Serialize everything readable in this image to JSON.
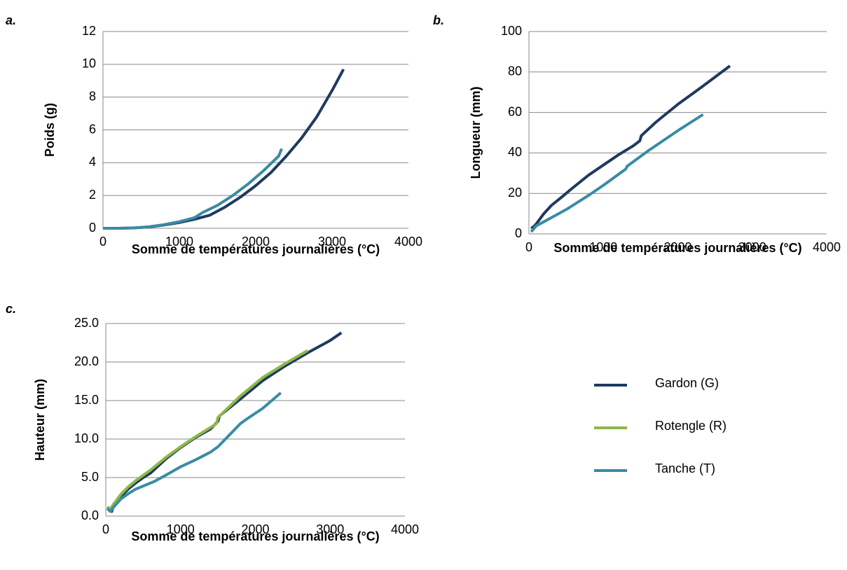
{
  "chart_data": [
    {
      "type": "line",
      "label": "a.",
      "ylabel": "Poids (g)",
      "xlabel": "Somme de températures journalières (°C)",
      "xlim": [
        0,
        4000
      ],
      "xticks": [
        0,
        1000,
        2000,
        3000,
        4000
      ],
      "ylim": [
        0,
        12
      ],
      "yticks": [
        0,
        2,
        4,
        6,
        8,
        10,
        12
      ],
      "grid": true,
      "series": [
        {
          "color": "#1f3a5f",
          "x": [
            0,
            200,
            400,
            600,
            800,
            1000,
            1200,
            1400,
            1600,
            1800,
            2000,
            2200,
            2400,
            2600,
            2800,
            3000,
            3150
          ],
          "values": [
            0,
            0,
            0.02,
            0.08,
            0.2,
            0.35,
            0.55,
            0.8,
            1.3,
            1.9,
            2.6,
            3.4,
            4.4,
            5.5,
            6.8,
            8.4,
            9.7
          ]
        },
        {
          "color": "#3a8ba5",
          "x": [
            0,
            200,
            400,
            600,
            800,
            1000,
            1200,
            1300,
            1500,
            1700,
            1900,
            2100,
            2300,
            2340
          ],
          "values": [
            0,
            0,
            0.02,
            0.09,
            0.22,
            0.4,
            0.65,
            0.95,
            1.4,
            2.0,
            2.7,
            3.5,
            4.4,
            4.85
          ]
        }
      ]
    },
    {
      "type": "line",
      "label": "b.",
      "ylabel": "Longueur (mm)",
      "xlabel": "Somme de températures journalières (°C)",
      "xlim": [
        0,
        4000
      ],
      "xticks": [
        0,
        1000,
        2000,
        3000,
        4000
      ],
      "ylim": [
        0,
        100
      ],
      "yticks": [
        0,
        20,
        40,
        60,
        80,
        100
      ],
      "grid": true,
      "series": [
        {
          "color": "#1f3a5f",
          "x": [
            30,
            50,
            100,
            200,
            300,
            400,
            500,
            580,
            800,
            1000,
            1200,
            1400,
            1490,
            1510,
            1700,
            2000,
            2300,
            2700
          ],
          "values": [
            3.5,
            3,
            5,
            10,
            14,
            17,
            20,
            22.5,
            29,
            34,
            39,
            43.5,
            46,
            48.5,
            55,
            64,
            72,
            83
          ]
        },
        {
          "color": "#3a8ba5",
          "x": [
            30,
            100,
            200,
            300,
            400,
            500,
            520,
            800,
            1000,
            1300,
            1320,
            1600,
            2000,
            2340
          ],
          "values": [
            1,
            4,
            6,
            8,
            10,
            12,
            12.5,
            19,
            24,
            32,
            33.5,
            41,
            51,
            59
          ]
        }
      ]
    },
    {
      "type": "line",
      "label": "c.",
      "ylabel": "Hauteur (mm)",
      "xlabel": "Somme de températures journalières (°C)",
      "xlim": [
        0,
        4000
      ],
      "xticks": [
        0,
        1000,
        2000,
        3000,
        4000
      ],
      "ylim": [
        0,
        25
      ],
      "yticks": [
        {
          "value": 0,
          "label": "0.0"
        },
        {
          "value": 5,
          "label": "5.0"
        },
        {
          "value": 10,
          "label": "10.0"
        },
        {
          "value": 15,
          "label": "15.0"
        },
        {
          "value": 20,
          "label": "20.0"
        },
        {
          "value": 25,
          "label": "25.0"
        }
      ],
      "grid": true,
      "series": [
        {
          "name": "Gardon (G)",
          "color": "#1f3a5f",
          "x": [
            20,
            80,
            100,
            200,
            300,
            400,
            500,
            600,
            800,
            1000,
            1200,
            1400,
            1500,
            1520,
            1800,
            2100,
            2400,
            2700,
            3000,
            3150
          ],
          "values": [
            1,
            0.6,
            1.2,
            2.5,
            3.5,
            4.3,
            5,
            5.6,
            7.4,
            8.9,
            10.2,
            11.3,
            12.3,
            13,
            15.2,
            17.6,
            19.5,
            21.2,
            22.8,
            23.8
          ]
        },
        {
          "name": "Rotengle (R)",
          "color": "#8db84a",
          "x": [
            20,
            60,
            100,
            200,
            300,
            400,
            500,
            600,
            800,
            1000,
            1200,
            1400,
            1480,
            1500,
            1800,
            2100,
            2400,
            2700
          ],
          "values": [
            1.2,
            0.9,
            1.5,
            2.8,
            3.8,
            4.6,
            5.3,
            6,
            7.6,
            9,
            10.3,
            11.5,
            12,
            12.8,
            15.6,
            18,
            19.8,
            21.5
          ]
        },
        {
          "name": "Tanche (T)",
          "color": "#3a8ba5",
          "x": [
            20,
            60,
            100,
            200,
            300,
            400,
            500,
            600,
            650,
            800,
            1000,
            1200,
            1400,
            1500,
            1600,
            1800,
            1900,
            2100,
            2340
          ],
          "values": [
            1,
            0.6,
            1.1,
            2.2,
            2.9,
            3.5,
            3.9,
            4.3,
            4.5,
            5.3,
            6.4,
            7.3,
            8.3,
            9,
            10,
            12,
            12.7,
            14,
            16
          ]
        }
      ]
    }
  ]
}
